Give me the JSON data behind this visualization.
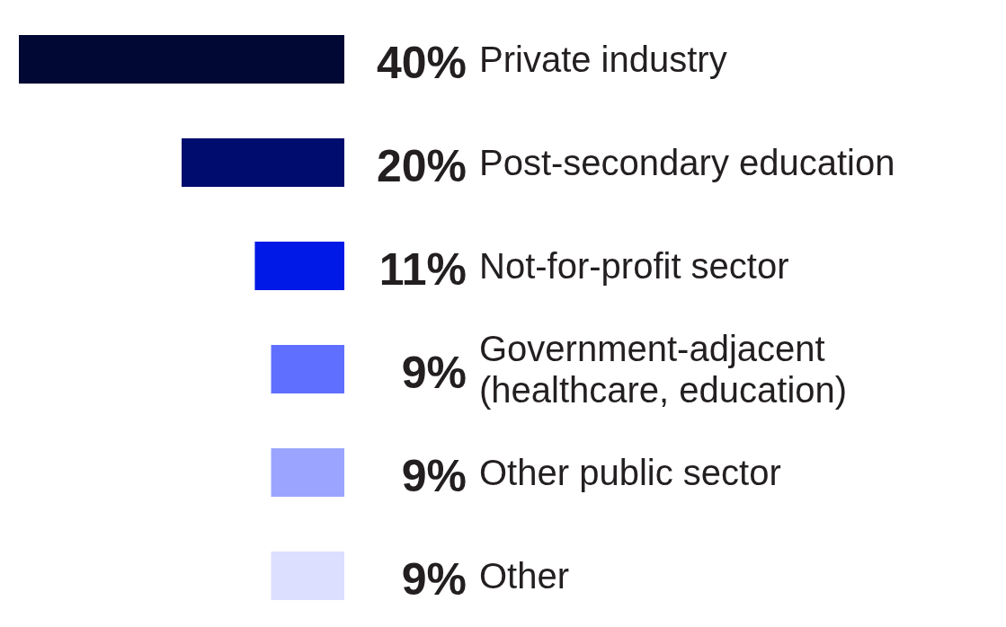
{
  "chart_data": {
    "type": "bar",
    "orientation": "horizontal",
    "categories": [
      "Private industry",
      "Post-secondary education",
      "Not-for-profit sector",
      "Government-adjacent (healthcare, education)",
      "Other public sector",
      "Other"
    ],
    "values": [
      40,
      20,
      11,
      9,
      9,
      9
    ],
    "colors": [
      "#000833",
      "#000c6e",
      "#0019e6",
      "#5f6fff",
      "#9ba5ff",
      "#dcdfff"
    ],
    "value_labels": [
      "40%",
      "20%",
      "11%",
      "9%",
      "9%",
      "9%"
    ]
  }
}
